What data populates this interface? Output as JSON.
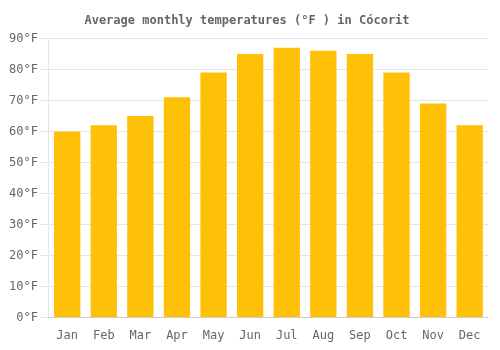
{
  "chart_data": {
    "type": "bar",
    "title": "Average monthly temperatures (°F ) in Cócorit",
    "categories": [
      "Jan",
      "Feb",
      "Mar",
      "Apr",
      "May",
      "Jun",
      "Jul",
      "Aug",
      "Sep",
      "Oct",
      "Nov",
      "Dec"
    ],
    "values": [
      60,
      62,
      65,
      71,
      79,
      85,
      87,
      86,
      85,
      79,
      69,
      62
    ],
    "color": "#FFC107",
    "ylim": [
      0,
      90
    ],
    "yticks": [
      {
        "value": 0,
        "label": "0°F"
      },
      {
        "value": 10,
        "label": "10°F"
      },
      {
        "value": 20,
        "label": "20°F"
      },
      {
        "value": 30,
        "label": "30°F"
      },
      {
        "value": 40,
        "label": "40°F"
      },
      {
        "value": 50,
        "label": "50°F"
      },
      {
        "value": 60,
        "label": "60°F"
      },
      {
        "value": 70,
        "label": "70°F"
      },
      {
        "value": 80,
        "label": "80°F"
      },
      {
        "value": 90,
        "label": "90°F"
      }
    ],
    "grid": true
  }
}
